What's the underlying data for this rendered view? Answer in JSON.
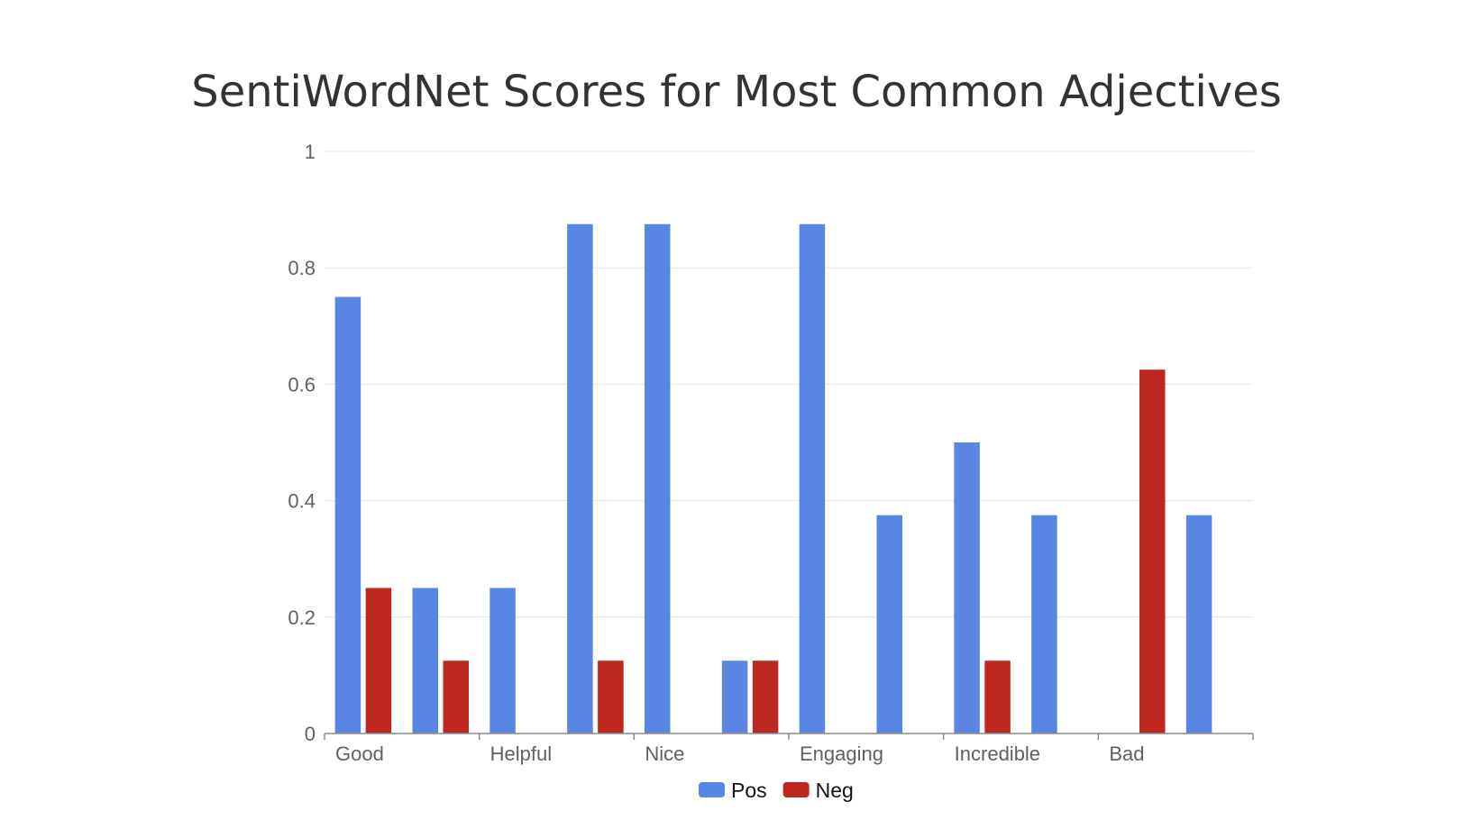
{
  "chart_data": {
    "type": "bar",
    "title": "SentiWordNet Scores for Most Common Adjectives",
    "xlabel": "",
    "ylabel": "",
    "ylim": [
      0,
      1
    ],
    "yticks": [
      "0",
      "0.2",
      "0.4",
      "0.6",
      "0.8",
      "1"
    ],
    "category_labels": [
      "Good",
      "Helpful",
      "Nice",
      "Engaging",
      "Incredible",
      "Bad"
    ],
    "grid": true,
    "legend_position": "bottom",
    "series": [
      {
        "name": "Pos",
        "color": "#5a86e3",
        "values": [
          0.75,
          0.25,
          0.25,
          0.875,
          0.875,
          0.125,
          0.875,
          0.375,
          0.5,
          0.375,
          0,
          0.375
        ]
      },
      {
        "name": "Neg",
        "color": "#bd271e",
        "values": [
          0.25,
          0.125,
          0,
          0.125,
          0,
          0.125,
          0,
          0,
          0.125,
          0,
          0.625,
          0
        ]
      }
    ]
  }
}
